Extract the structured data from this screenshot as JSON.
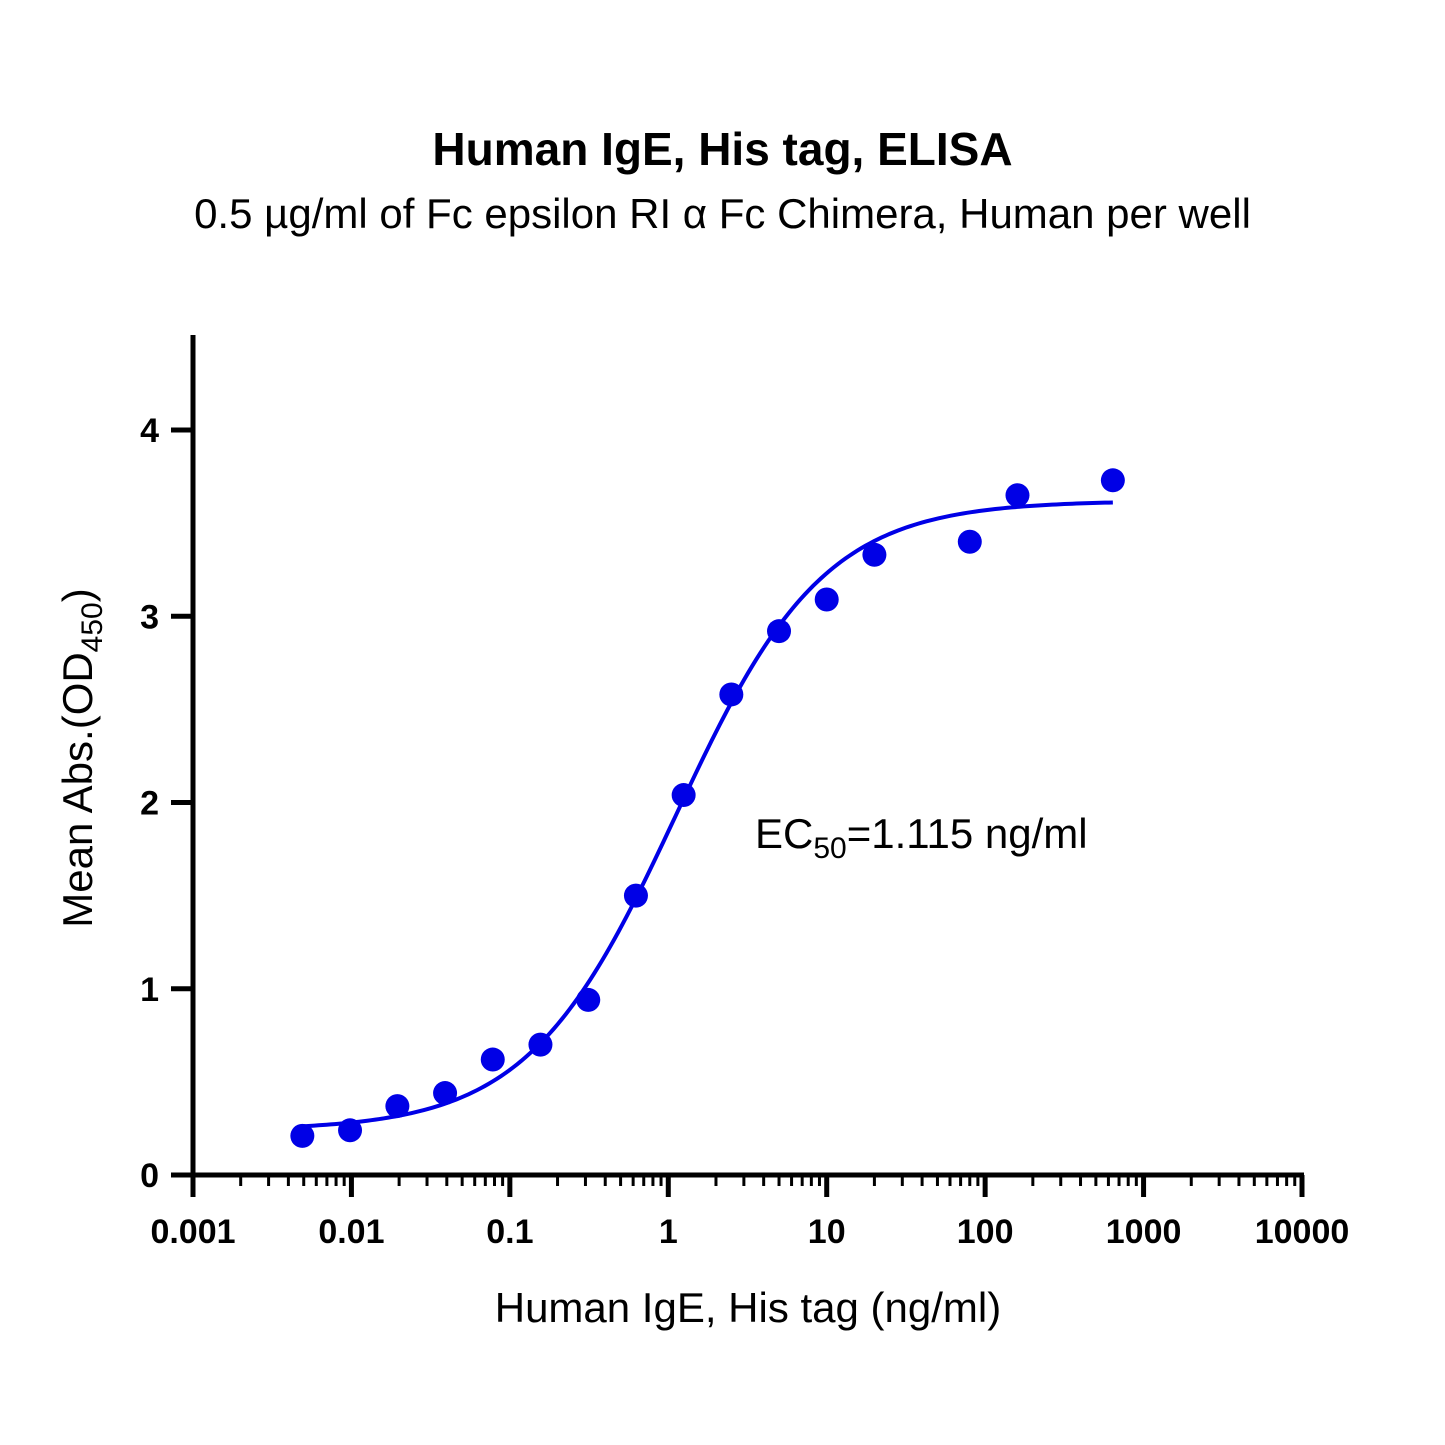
{
  "chart_data": {
    "type": "scatter",
    "title": "Human IgE, His tag, ELISA",
    "subtitle": "0.5 µg/ml of Fc epsilon RI α Fc Chimera, Human per well",
    "xlabel": "Human IgE, His tag (ng/ml)",
    "ylabel": {
      "main": "Mean Abs.(OD",
      "sub": "450",
      "end": ")"
    },
    "x_scale": "log",
    "xlim": [
      0.001,
      10000
    ],
    "ylim": [
      0,
      4.5
    ],
    "x_ticks": [
      0.001,
      0.01,
      0.1,
      1,
      10,
      100,
      1000,
      10000
    ],
    "x_tick_labels": [
      "0.001",
      "0.01",
      "0.1",
      "1",
      "10",
      "100",
      "1000",
      "10000"
    ],
    "y_ticks": [
      0,
      1,
      2,
      3,
      4
    ],
    "y_tick_labels": [
      "0",
      "1",
      "2",
      "3",
      "4"
    ],
    "grid": false,
    "color": "#0000e6",
    "points": [
      {
        "x": 0.0049,
        "y": 0.21
      },
      {
        "x": 0.0098,
        "y": 0.24
      },
      {
        "x": 0.0195,
        "y": 0.37
      },
      {
        "x": 0.039,
        "y": 0.44
      },
      {
        "x": 0.078,
        "y": 0.62
      },
      {
        "x": 0.156,
        "y": 0.7
      },
      {
        "x": 0.3125,
        "y": 0.94
      },
      {
        "x": 0.625,
        "y": 1.5
      },
      {
        "x": 1.25,
        "y": 2.04
      },
      {
        "x": 2.5,
        "y": 2.58
      },
      {
        "x": 5,
        "y": 2.92
      },
      {
        "x": 10,
        "y": 3.09
      },
      {
        "x": 20,
        "y": 3.33
      },
      {
        "x": 80,
        "y": 3.4
      },
      {
        "x": 160,
        "y": 3.65
      },
      {
        "x": 640,
        "y": 3.73
      }
    ],
    "fit": {
      "bottom": 0.24,
      "top": 3.62,
      "ec50": 1.115,
      "hill": 0.93,
      "x_range": [
        0.0049,
        640
      ]
    },
    "annotation": {
      "main": "EC",
      "sub": "50",
      "end": "=1.115 ng/ml"
    }
  }
}
